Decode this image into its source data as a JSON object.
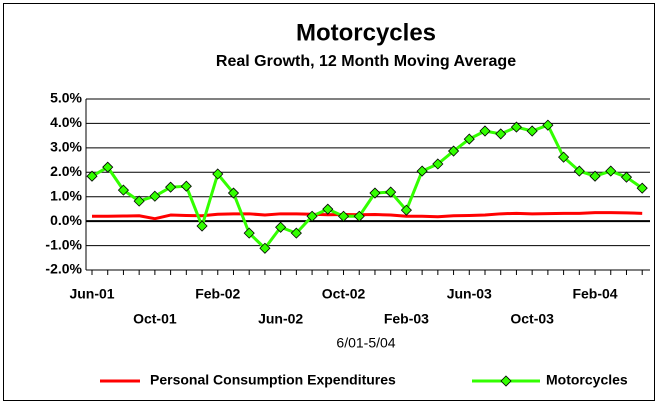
{
  "chart_data": {
    "type": "line",
    "title": "Motorcycles",
    "subtitle": "Real Growth, 12 Month Moving Average",
    "xlabel": "6/01-5/04",
    "categories": [
      "Jun-01",
      null,
      null,
      null,
      "Oct-01",
      null,
      null,
      null,
      "Feb-02",
      null,
      null,
      null,
      "Jun-02",
      null,
      null,
      null,
      "Oct-02",
      null,
      null,
      null,
      "Feb-03",
      null,
      null,
      null,
      "Jun-03",
      null,
      null,
      null,
      "Oct-03",
      null,
      null,
      null,
      "Feb-04",
      null,
      null,
      null
    ],
    "series": [
      {
        "name": "Personal Consumption Expenditures",
        "color": "#ff0000",
        "values": [
          0.2,
          0.2,
          0.21,
          0.22,
          0.1,
          0.25,
          0.23,
          0.22,
          0.28,
          0.3,
          0.3,
          0.25,
          0.3,
          0.3,
          0.28,
          0.26,
          0.27,
          0.26,
          0.27,
          0.25,
          0.2,
          0.2,
          0.18,
          0.22,
          0.23,
          0.25,
          0.3,
          0.32,
          0.3,
          0.31,
          0.32,
          0.32,
          0.35,
          0.35,
          0.34,
          0.32
        ]
      },
      {
        "name": "Motorcycles",
        "color": "#33ff00",
        "marker": "diamond",
        "values": [
          1.84,
          2.21,
          1.27,
          0.82,
          1.02,
          1.39,
          1.43,
          -0.2,
          1.93,
          1.15,
          -0.49,
          -1.11,
          -0.25,
          -0.49,
          0.2,
          0.49,
          0.2,
          0.2,
          1.15,
          1.19,
          0.45,
          2.05,
          2.34,
          2.87,
          3.36,
          3.69,
          3.57,
          3.85,
          3.69,
          3.93,
          2.62,
          2.05,
          1.84,
          2.05,
          1.8,
          1.35
        ]
      }
    ],
    "ylim": [
      -2,
      5
    ],
    "yticks": [
      {
        "value": -2,
        "label": "-2.0%"
      },
      {
        "value": -1,
        "label": "-1.0%"
      },
      {
        "value": 0,
        "label": "0.0%"
      },
      {
        "value": 1,
        "label": "1.0%"
      },
      {
        "value": 2,
        "label": "2.0%"
      },
      {
        "value": 3,
        "label": "3.0%"
      },
      {
        "value": 4,
        "label": "4.0%"
      },
      {
        "value": 5,
        "label": "5.0%"
      }
    ],
    "grid": true,
    "legend": "bottom"
  }
}
